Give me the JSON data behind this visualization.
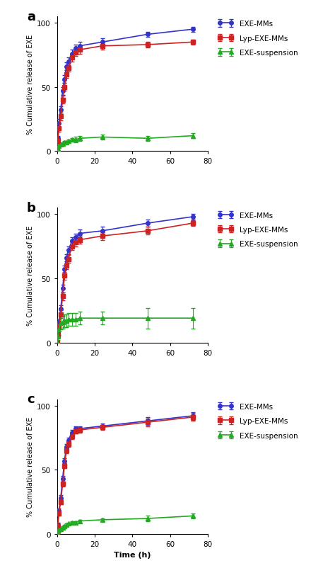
{
  "panels": [
    "a",
    "b",
    "c"
  ],
  "time_points": [
    0,
    0.5,
    1,
    2,
    3,
    4,
    5,
    6,
    8,
    10,
    12,
    24,
    48,
    72
  ],
  "panel_a": {
    "exe_mms": [
      0,
      10,
      22,
      32,
      47,
      56,
      66,
      70,
      76,
      80,
      82,
      85,
      91,
      95
    ],
    "exe_mms_err": [
      0,
      2,
      3,
      3,
      3,
      3,
      3,
      3,
      3,
      3,
      3,
      3,
      2,
      2
    ],
    "lyp_exe_mms": [
      0,
      8,
      18,
      27,
      40,
      50,
      60,
      65,
      73,
      77,
      79,
      82,
      83,
      85
    ],
    "lyp_exe_mms_err": [
      0,
      2,
      3,
      3,
      3,
      3,
      3,
      3,
      3,
      3,
      3,
      3,
      2,
      2
    ],
    "exe_susp": [
      0,
      2,
      4,
      5,
      6,
      7,
      7,
      8,
      9,
      9,
      10,
      11,
      10,
      12
    ],
    "exe_susp_err": [
      0,
      1,
      1,
      1,
      1,
      1,
      1,
      1,
      1,
      2,
      2,
      2,
      2,
      2
    ]
  },
  "panel_b": {
    "exe_mms": [
      0,
      8,
      16,
      26,
      42,
      57,
      66,
      72,
      79,
      82,
      85,
      87,
      93,
      98
    ],
    "exe_mms_err": [
      0,
      2,
      2,
      3,
      3,
      3,
      3,
      3,
      3,
      3,
      3,
      3,
      3,
      2
    ],
    "lyp_exe_mms": [
      0,
      6,
      13,
      22,
      36,
      52,
      60,
      65,
      75,
      78,
      80,
      83,
      87,
      93
    ],
    "lyp_exe_mms_err": [
      0,
      2,
      2,
      3,
      3,
      3,
      3,
      3,
      3,
      3,
      3,
      3,
      3,
      2
    ],
    "exe_susp": [
      0,
      5,
      10,
      15,
      16,
      17,
      17,
      18,
      18,
      18,
      19,
      19,
      19,
      19
    ],
    "exe_susp_err": [
      0,
      3,
      4,
      5,
      5,
      5,
      5,
      5,
      5,
      5,
      5,
      5,
      8,
      8
    ]
  },
  "panel_c": {
    "exe_mms": [
      0,
      7,
      18,
      28,
      43,
      57,
      68,
      73,
      79,
      82,
      82,
      84,
      88,
      92
    ],
    "exe_mms_err": [
      0,
      2,
      2,
      2,
      2,
      2,
      2,
      2,
      2,
      2,
      2,
      2,
      3,
      3
    ],
    "lyp_exe_mms": [
      0,
      6,
      16,
      25,
      39,
      53,
      65,
      70,
      76,
      80,
      81,
      83,
      87,
      91
    ],
    "lyp_exe_mms_err": [
      0,
      2,
      2,
      2,
      2,
      2,
      2,
      2,
      2,
      2,
      2,
      2,
      3,
      3
    ],
    "exe_susp": [
      0,
      2,
      3,
      4,
      5,
      6,
      7,
      8,
      9,
      9,
      10,
      11,
      12,
      14
    ],
    "exe_susp_err": [
      0,
      1,
      1,
      1,
      1,
      1,
      1,
      1,
      1,
      1,
      1,
      1,
      2,
      2
    ]
  },
  "colors": {
    "exe_mms": "#3333CC",
    "lyp_exe_mms": "#CC2222",
    "exe_susp": "#22AA22"
  },
  "ylabel": "% Cumulative release of EXE",
  "xlabel": "Time (h)",
  "xlim": [
    0,
    80
  ],
  "ylim": [
    0,
    105
  ],
  "yticks": [
    0,
    50,
    100
  ],
  "xticks": [
    0,
    20,
    40,
    60,
    80
  ],
  "legend_labels": [
    "EXE-MMs",
    "Lyp-EXE-MMs",
    "EXE-suspension"
  ]
}
